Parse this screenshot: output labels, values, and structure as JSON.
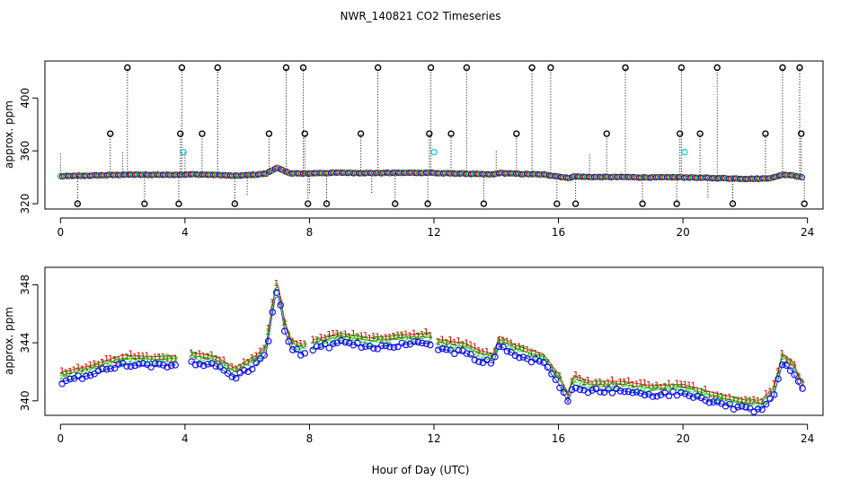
{
  "page": {
    "title": "NWR_140821  CO2 Timeseries",
    "xlabel": "Hour of Day (UTC)"
  },
  "colors": {
    "green": "#00c000",
    "red": "#d00000",
    "blue": "#0000ff",
    "cyan": "#00d0d0",
    "dark": "#000000"
  },
  "chart_data": [
    {
      "type": "scatter",
      "panel": "top",
      "title": "NWR_140821  CO2 Timeseries",
      "xlabel": "",
      "ylabel": "approx. ppm",
      "xlim": [
        -0.5,
        24.5
      ],
      "ylim": [
        316,
        428
      ],
      "xticks": [
        "0",
        "4",
        "8",
        "12",
        "16",
        "20",
        "24"
      ],
      "yticks": [
        "320",
        "360",
        "400"
      ],
      "grid": false,
      "outlier_high_x": [
        2.15,
        3.9,
        5.05,
        7.25,
        7.8,
        10.2,
        11.9,
        13.05,
        15.15,
        15.75,
        18.15,
        19.95,
        21.1,
        23.2,
        23.75
      ],
      "outlier_mid_x": [
        1.6,
        3.85,
        4.55,
        6.7,
        7.85,
        9.65,
        11.85,
        12.55,
        14.65,
        17.55,
        19.9,
        20.55,
        22.65,
        23.8
      ],
      "outlier_low_x": [
        0.55,
        2.7,
        3.8,
        5.6,
        7.95,
        8.55,
        10.75,
        11.8,
        13.6,
        15.95,
        16.55,
        18.7,
        19.8,
        21.6,
        23.9
      ],
      "cyan_x": [
        3.95,
        12.0,
        20.05
      ],
      "cyan_y": [
        359,
        359,
        359
      ]
    },
    {
      "type": "scatter",
      "panel": "bottom",
      "title": "",
      "xlabel": "Hour of Day (UTC)",
      "ylabel": "approx. ppm",
      "xlim": [
        -0.5,
        24.5
      ],
      "ylim": [
        339,
        349.2
      ],
      "xticks": [
        "0",
        "4",
        "8",
        "12",
        "16",
        "20",
        "24"
      ],
      "yticks": [
        "340",
        "344",
        "348"
      ],
      "grid": false,
      "base_x": [
        0,
        1,
        2,
        3,
        3.9,
        4.2,
        5,
        5.6,
        6.3,
        6.6,
        6.8,
        6.95,
        7.05,
        7.2,
        7.4,
        7.6,
        7.8,
        8,
        9,
        10,
        11,
        11.9,
        12.1,
        13,
        13.5,
        13.9,
        14.1,
        14.6,
        15,
        15.5,
        16,
        16.3,
        16.5,
        17,
        18,
        19,
        20,
        21,
        22,
        22.5,
        22.9,
        23.2,
        23.5,
        23.8
      ],
      "base_y": [
        341.6,
        342.1,
        342.8,
        342.7,
        342.8,
        343.0,
        342.7,
        341.9,
        342.8,
        343.5,
        346.2,
        348.0,
        347.0,
        345.2,
        343.9,
        343.7,
        343.5,
        343.8,
        344.3,
        344.0,
        344.2,
        344.3,
        343.9,
        343.6,
        343.1,
        342.9,
        344.1,
        343.5,
        343.2,
        342.9,
        341.5,
        340.2,
        341.4,
        341.0,
        341.0,
        340.7,
        340.8,
        340.2,
        339.7,
        339.7,
        340.5,
        342.9,
        342.4,
        341.1
      ]
    }
  ]
}
